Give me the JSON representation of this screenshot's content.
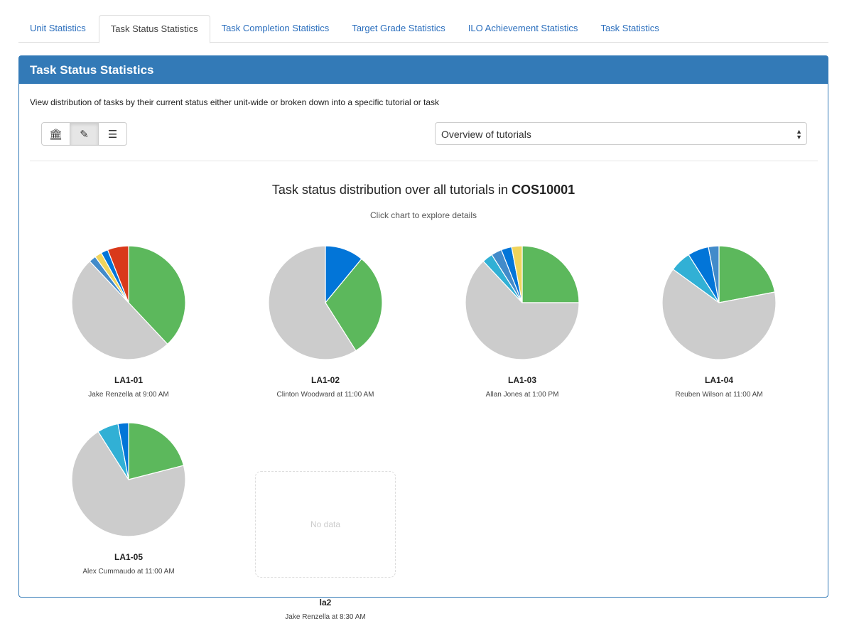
{
  "tabs": [
    "Unit Statistics",
    "Task Status Statistics",
    "Task Completion Statistics",
    "Target Grade Statistics",
    "ILO Achievement Statistics",
    "Task Statistics"
  ],
  "panel": {
    "title": "Task Status Statistics",
    "description": "View distribution of tasks by their current status either unit-wide or broken down into a specific tutorial or task",
    "toolbar": [
      "bank-icon",
      "pencil-icon",
      "list-icon"
    ],
    "select_value": "Overview of tutorials"
  },
  "chart": {
    "title_prefix": "Task status distribution over all tutorials in ",
    "unit_code": "COS10001",
    "subtitle": "Click chart to explore details",
    "no_data": "No data"
  },
  "colors": {
    "green": "#5cb85c",
    "gray": "#cccccc",
    "steel": "#428bca",
    "yellow": "#f0d45c",
    "blue": "#0275d8",
    "red": "#d9391b",
    "light": "#31b0d5"
  },
  "chart_data": {
    "type": "pie",
    "title": "Task status distribution over all tutorials in COS10001",
    "tutorials": [
      {
        "name": "LA1-01",
        "sub": "Jake Renzella at 9:00 AM",
        "slices": [
          [
            "green",
            38
          ],
          [
            "gray",
            50
          ],
          [
            "steel",
            2
          ],
          [
            "yellow",
            2
          ],
          [
            "blue",
            2
          ],
          [
            "red",
            6
          ]
        ]
      },
      {
        "name": "LA1-02",
        "sub": "Clinton Woodward at 11:00 AM",
        "slices": [
          [
            "blue",
            11
          ],
          [
            "green",
            30
          ],
          [
            "gray",
            59
          ]
        ]
      },
      {
        "name": "LA1-03",
        "sub": "Allan Jones at 1:00 PM",
        "slices": [
          [
            "green",
            25
          ],
          [
            "gray",
            63
          ],
          [
            "light",
            3
          ],
          [
            "steel",
            3
          ],
          [
            "blue",
            3
          ],
          [
            "yellow",
            3
          ]
        ]
      },
      {
        "name": "LA1-04",
        "sub": "Reuben Wilson at 11:00 AM",
        "slices": [
          [
            "green",
            22
          ],
          [
            "gray",
            63
          ],
          [
            "light",
            6
          ],
          [
            "blue",
            6
          ],
          [
            "steel",
            3
          ]
        ]
      },
      {
        "name": "LA1-05",
        "sub": "Alex Cummaudo at 11:00 AM",
        "slices": [
          [
            "green",
            21
          ],
          [
            "gray",
            70
          ],
          [
            "light",
            6
          ],
          [
            "blue",
            3
          ]
        ]
      },
      {
        "name": "la2",
        "sub": "Jake Renzella at 8:30 AM",
        "slices": []
      }
    ]
  }
}
